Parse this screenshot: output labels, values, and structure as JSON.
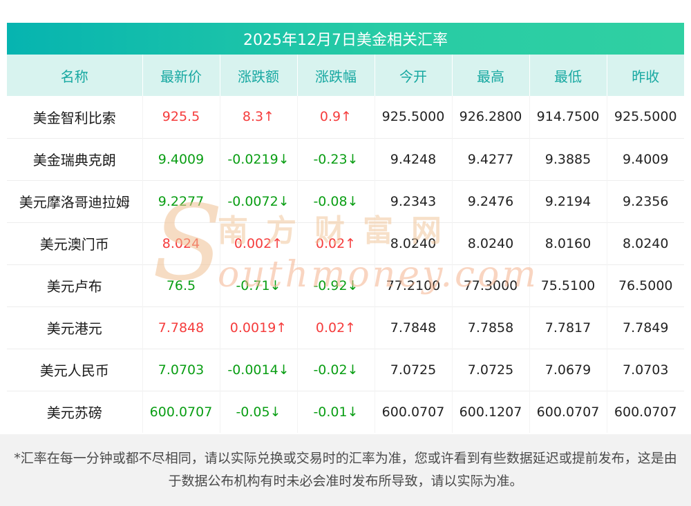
{
  "page": {
    "footnote": "*汇率在每一分钟或都不尽相同，请以实际兑换或交易时的汇率为准，您或许看到有些数据延迟或提前发布，这是由于数据公布机构有时未必会准时发布所导致，请以实际为准。"
  },
  "watermark": {
    "initial": "S",
    "cn": "南方财富网",
    "en": "outhmoney.com"
  },
  "colors": {
    "up": "#f53c3c",
    "down": "#0a9e14",
    "header_gradient_left": "#06b4b0",
    "header_gradient_mid": "#27cba5",
    "header_gradient_right": "#30d0a2",
    "column_header_bg": "#d8f3ef",
    "column_header_text": "#17a8a1",
    "footer_bg": "#f2f2f2"
  },
  "chart_data": {
    "type": "table",
    "title": "2025年12月7日美金相关汇率",
    "columns": [
      "名称",
      "最新价",
      "涨跌额",
      "涨跌幅",
      "今开",
      "最高",
      "最低",
      "昨收"
    ],
    "rows": [
      {
        "name": "美金智利比索",
        "latest": "925.5",
        "change": "8.3↑",
        "percent": "0.9↑",
        "open": "925.5000",
        "high": "926.2800",
        "low": "914.7500",
        "prev_close": "925.5000",
        "direction": "up"
      },
      {
        "name": "美金瑞典克朗",
        "latest": "9.4009",
        "change": "-0.0219↓",
        "percent": "-0.23↓",
        "open": "9.4248",
        "high": "9.4277",
        "low": "9.3885",
        "prev_close": "9.4009",
        "direction": "down"
      },
      {
        "name": "美元摩洛哥迪拉姆",
        "latest": "9.2277",
        "change": "-0.0072↓",
        "percent": "-0.08↓",
        "open": "9.2343",
        "high": "9.2476",
        "low": "9.2194",
        "prev_close": "9.2356",
        "direction": "down"
      },
      {
        "name": "美元澳门币",
        "latest": "8.024",
        "change": "0.002↑",
        "percent": "0.02↑",
        "open": "8.0240",
        "high": "8.0240",
        "low": "8.0160",
        "prev_close": "8.0240",
        "direction": "up"
      },
      {
        "name": "美元卢布",
        "latest": "76.5",
        "change": "-0.71↓",
        "percent": "-0.92↓",
        "open": "77.2100",
        "high": "77.3000",
        "low": "75.5100",
        "prev_close": "76.5000",
        "direction": "down"
      },
      {
        "name": "美元港元",
        "latest": "7.7848",
        "change": "0.0019↑",
        "percent": "0.02↑",
        "open": "7.7848",
        "high": "7.7858",
        "low": "7.7817",
        "prev_close": "7.7849",
        "direction": "up"
      },
      {
        "name": "美元人民币",
        "latest": "7.0703",
        "change": "-0.0014↓",
        "percent": "-0.02↓",
        "open": "7.0725",
        "high": "7.0725",
        "low": "7.0679",
        "prev_close": "7.0703",
        "direction": "down"
      },
      {
        "name": "美元苏磅",
        "latest": "600.0707",
        "change": "-0.05↓",
        "percent": "-0.01↓",
        "open": "600.0707",
        "high": "600.1207",
        "low": "600.0707",
        "prev_close": "600.0707",
        "direction": "down"
      }
    ]
  }
}
